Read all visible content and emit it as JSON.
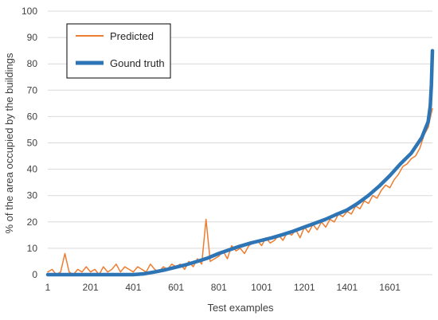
{
  "chart_data": {
    "type": "line",
    "xlabel": "Test examples",
    "ylabel": "% of the area occupied by the buildings",
    "xlim": [
      1,
      1800
    ],
    "ylim": [
      0,
      100
    ],
    "x_ticks": [
      1,
      201,
      401,
      601,
      801,
      1001,
      1201,
      1401,
      1601
    ],
    "y_ticks": [
      0,
      10,
      20,
      30,
      40,
      50,
      60,
      70,
      80,
      90,
      100
    ],
    "grid": "horizontal",
    "legend_position": "top-left",
    "series": [
      {
        "name": "Predicted",
        "color": "#ED7D31",
        "x": [
          1,
          21,
          41,
          61,
          81,
          101,
          121,
          141,
          161,
          181,
          201,
          221,
          241,
          261,
          281,
          301,
          321,
          341,
          361,
          381,
          401,
          421,
          441,
          461,
          481,
          501,
          521,
          541,
          561,
          581,
          601,
          621,
          641,
          661,
          681,
          701,
          721,
          741,
          761,
          781,
          801,
          821,
          841,
          861,
          881,
          901,
          921,
          941,
          961,
          981,
          1001,
          1021,
          1041,
          1061,
          1081,
          1101,
          1121,
          1141,
          1161,
          1181,
          1201,
          1221,
          1241,
          1261,
          1281,
          1301,
          1321,
          1341,
          1361,
          1381,
          1401,
          1421,
          1441,
          1461,
          1481,
          1501,
          1521,
          1541,
          1561,
          1581,
          1601,
          1621,
          1641,
          1661,
          1681,
          1701,
          1721,
          1741,
          1761,
          1781,
          1791,
          1800
        ],
        "values": [
          1,
          2,
          0,
          1,
          8,
          1,
          0,
          2,
          1,
          3,
          1,
          2,
          0,
          3,
          1,
          2,
          4,
          1,
          3,
          2,
          1,
          3,
          2,
          1,
          4,
          2,
          1,
          3,
          2,
          4,
          3,
          4,
          2,
          5,
          3,
          6,
          4,
          21,
          5,
          6,
          7,
          9,
          6,
          11,
          9,
          10,
          8,
          11,
          12,
          13,
          11,
          14,
          12,
          13,
          15,
          13,
          16,
          15,
          17,
          14,
          18,
          16,
          19,
          17,
          20,
          18,
          21,
          20,
          23,
          22,
          24,
          23,
          26,
          25,
          28,
          27,
          30,
          29,
          32,
          34,
          33,
          36,
          38,
          41,
          42,
          44,
          45,
          48,
          53,
          56,
          60,
          63
        ]
      },
      {
        "name": "Gound truth",
        "color": "#2E75B6",
        "x": [
          1,
          100,
          200,
          300,
          400,
          450,
          500,
          550,
          600,
          650,
          700,
          750,
          800,
          850,
          900,
          950,
          1000,
          1050,
          1100,
          1150,
          1200,
          1250,
          1300,
          1350,
          1400,
          1450,
          1500,
          1550,
          1600,
          1650,
          1700,
          1750,
          1780,
          1790,
          1795,
          1800
        ],
        "values": [
          0,
          0,
          0,
          0,
          0,
          0.3,
          1,
          1.8,
          2.8,
          3.8,
          5,
          6.3,
          8,
          9.4,
          10.8,
          12,
          13,
          14,
          15.2,
          16.5,
          18,
          19.5,
          21,
          22.8,
          24.5,
          27,
          30,
          33.5,
          37.5,
          42,
          46,
          52,
          58,
          64,
          72,
          85
        ]
      }
    ]
  }
}
